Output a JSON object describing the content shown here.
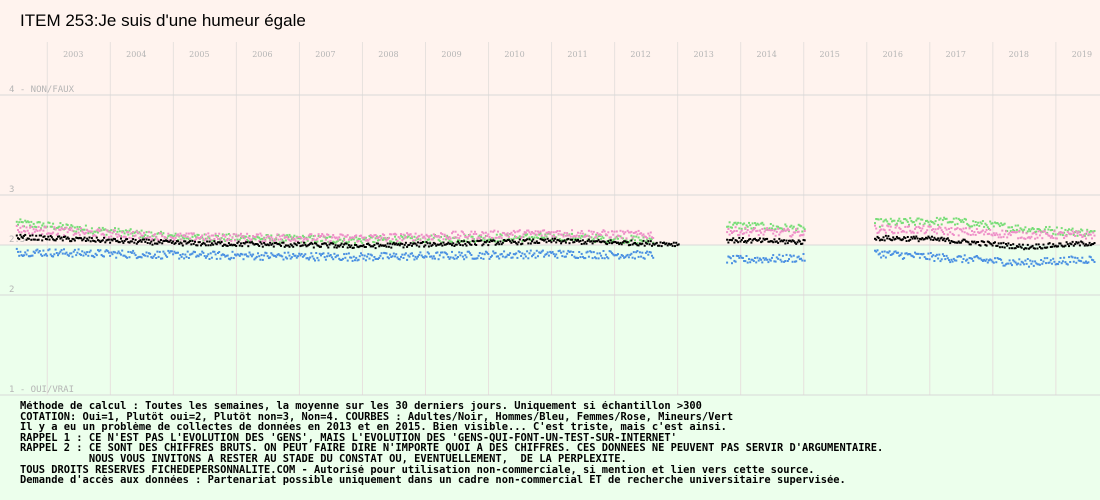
{
  "chart_data": {
    "type": "scatter",
    "title": "ITEM 253:Je suis d'une humeur égale",
    "x_ticks": [
      "2003",
      "2004",
      "2005",
      "2006",
      "2007",
      "2008",
      "2009",
      "2010",
      "2011",
      "2012",
      "2013",
      "2014",
      "2015",
      "2016",
      "2017",
      "2018",
      "2019"
    ],
    "y_ticks": [
      {
        "value": 4,
        "label": "4 - NON/FAUX"
      },
      {
        "value": 3,
        "label": "3"
      },
      {
        "value": 2.5,
        "label": "2.5"
      },
      {
        "value": 2,
        "label": "2"
      },
      {
        "value": 1,
        "label": "1 - OUI/VRAI"
      }
    ],
    "ylim": [
      1,
      4.2
    ],
    "xlim": [
      2002.25,
      2019.7
    ],
    "background_colors": {
      "above_2_5": "#fff3ee",
      "below_2_5": "#ecffec"
    },
    "gaps": [
      [
        2013.0,
        2013.75
      ],
      [
        2015.0,
        2016.1
      ]
    ],
    "data_end": 2019.6,
    "series": [
      {
        "name": "Adultes",
        "color": "#000000",
        "levels": [
          [
            2002.5,
            2.58
          ],
          [
            2005.0,
            2.52
          ],
          [
            2008.0,
            2.49
          ],
          [
            2011.0,
            2.54
          ],
          [
            2013.0,
            2.51
          ],
          [
            2013.8,
            2.55
          ],
          [
            2015.0,
            2.53
          ],
          [
            2016.1,
            2.57
          ],
          [
            2017.0,
            2.56
          ],
          [
            2018.5,
            2.48
          ],
          [
            2019.6,
            2.52
          ]
        ]
      },
      {
        "name": "Hommes",
        "color": "#4a90e2",
        "levels": [
          [
            2002.5,
            2.43
          ],
          [
            2005.0,
            2.4
          ],
          [
            2008.0,
            2.38
          ],
          [
            2011.0,
            2.41
          ],
          [
            2012.5,
            2.4
          ],
          [
            2013.8,
            2.35
          ],
          [
            2015.0,
            2.37
          ],
          [
            2016.1,
            2.42
          ],
          [
            2017.0,
            2.38
          ],
          [
            2018.5,
            2.32
          ],
          [
            2019.6,
            2.36
          ]
        ]
      },
      {
        "name": "Femmes",
        "color": "#ee8fc8",
        "levels": [
          [
            2002.5,
            2.66
          ],
          [
            2005.0,
            2.58
          ],
          [
            2008.0,
            2.57
          ],
          [
            2011.0,
            2.62
          ],
          [
            2012.5,
            2.6
          ],
          [
            2013.8,
            2.64
          ],
          [
            2015.0,
            2.62
          ],
          [
            2016.1,
            2.66
          ],
          [
            2017.0,
            2.65
          ],
          [
            2018.5,
            2.6
          ],
          [
            2019.6,
            2.6
          ]
        ]
      },
      {
        "name": "Mineurs",
        "color": "#77dd77",
        "levels": [
          [
            2002.5,
            2.72
          ],
          [
            2005.0,
            2.58
          ],
          [
            2008.0,
            2.55
          ],
          [
            2011.0,
            2.58
          ],
          [
            2012.5,
            2.55
          ],
          [
            2013.8,
            2.7
          ],
          [
            2015.0,
            2.66
          ],
          [
            2016.1,
            2.72
          ],
          [
            2017.3,
            2.74
          ],
          [
            2018.5,
            2.66
          ],
          [
            2019.6,
            2.62
          ]
        ]
      }
    ]
  },
  "notes": [
    "Méthode de calcul : Toutes les semaines, la moyenne sur les 30 derniers jours. Uniquement si échantillon >300",
    "COTATION: Oui=1, Plutôt oui=2, Plutôt non=3, Non=4. COURBES : Adultes/Noir, Hommes/Bleu, Femmes/Rose, Mineurs/Vert",
    "Il y a eu un problème de collectes de données en 2013 et en 2015. Bien visible... C'est triste, mais c'est ainsi.",
    "RAPPEL 1 : CE N'EST PAS L'EVOLUTION DES 'GENS', MAIS L'EVOLUTION DES 'GENS-QUI-FONT-UN-TEST-SUR-INTERNET'",
    "RAPPEL 2 : CE SONT DES CHIFFRES BRUTS. ON PEUT FAIRE DIRE N'IMPORTE QUOI A DES CHIFFRES. CES DONNEES NE PEUVENT PAS SERVIR D'ARGUMENTAIRE.",
    "           NOUS VOUS INVITONS A RESTER AU STADE DU CONSTAT OU, EVENTUELLEMENT,  DE LA PERPLEXITE.",
    "TOUS DROITS RESERVES FICHEDEPERSONNALITE.COM - Autorisé pour utilisation non-commerciale, si mention et lien vers cette source.",
    "Demande d'accès aux données : Partenariat possible uniquement dans un cadre non-commercial ET de recherche universitaire supervisée."
  ]
}
